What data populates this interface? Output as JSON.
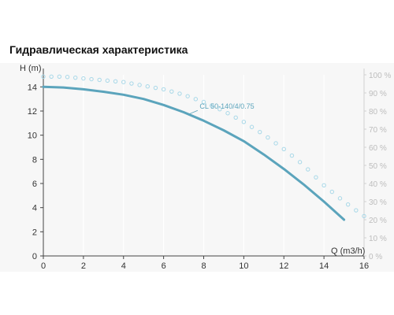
{
  "page": {
    "title": "Гидравлическая характеристика"
  },
  "chart_data": {
    "type": "line",
    "xlabel": "Q (m3/h)",
    "ylabel": "H (m)",
    "xlim": [
      0,
      16
    ],
    "ylim": [
      0,
      15
    ],
    "y2lim": [
      0,
      100
    ],
    "x_ticks": [
      "0",
      "2",
      "4",
      "6",
      "8",
      "10",
      "12",
      "14",
      "16"
    ],
    "y_ticks": [
      "0",
      "2",
      "4",
      "6",
      "8",
      "10",
      "12",
      "14"
    ],
    "y2_ticks": [
      "0 %",
      "10 %",
      "20 %",
      "30 %",
      "40 %",
      "50 %",
      "60 %",
      "70 %",
      "80 %",
      "90 %",
      "100 %"
    ],
    "grid": "vertical",
    "series": [
      {
        "name": "CL 50-140/4/0.75",
        "color": "#5ba4bc",
        "style": "solid",
        "axis": "left",
        "x": [
          0,
          1,
          2,
          3,
          4,
          5,
          6,
          7,
          8,
          9,
          10,
          11,
          12,
          13,
          14,
          15
        ],
        "y": [
          14.0,
          13.95,
          13.8,
          13.6,
          13.35,
          13.0,
          12.5,
          11.9,
          11.2,
          10.4,
          9.5,
          8.4,
          7.2,
          5.9,
          4.5,
          3.0
        ]
      },
      {
        "color": "#a8d8e8",
        "style": "dotted-circles",
        "axis": "right",
        "x": [
          0,
          1,
          2,
          3,
          4,
          5,
          6,
          7,
          8,
          9,
          10,
          11,
          12,
          13,
          14,
          15,
          16
        ],
        "y": [
          99,
          99,
          98,
          97,
          96,
          94,
          92,
          89,
          85,
          80,
          74,
          67,
          59,
          50,
          39,
          30,
          22
        ]
      }
    ]
  }
}
